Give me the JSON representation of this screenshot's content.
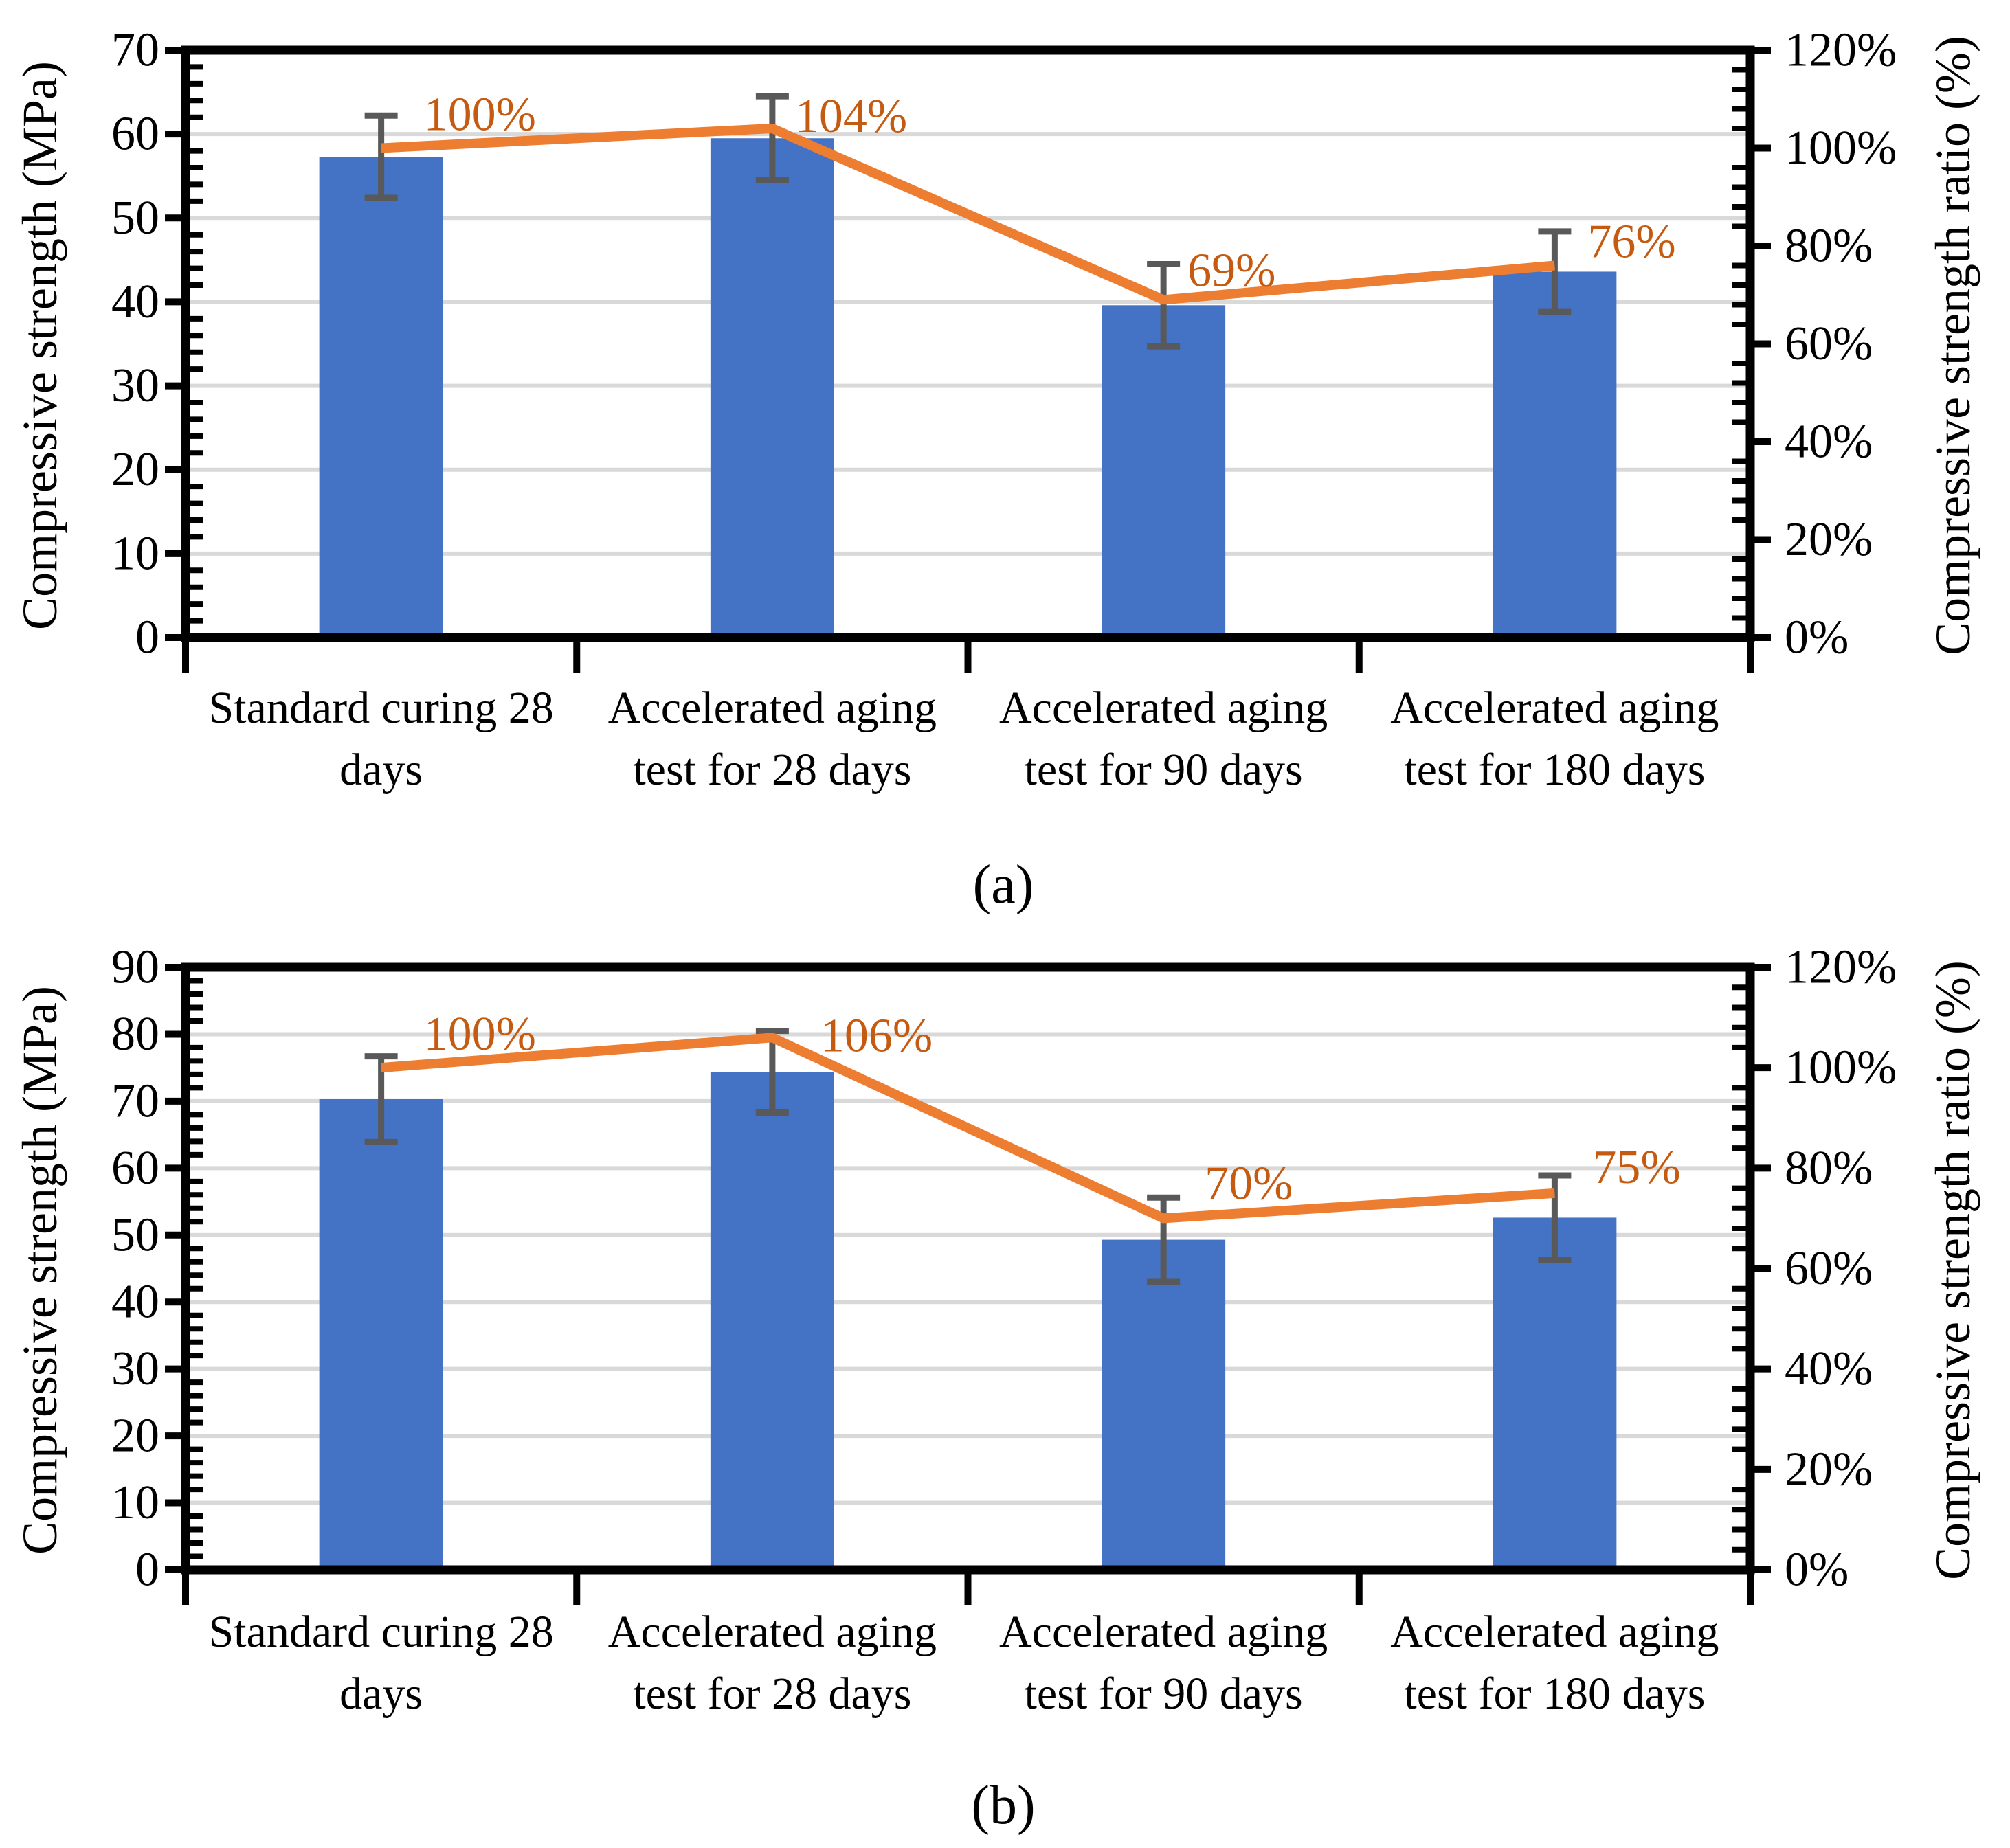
{
  "figure": {
    "background": "#FFFFFF",
    "colors": {
      "bar": "#4472C4",
      "line": "#ED7D31",
      "ratio_label": "#C55A11",
      "error_bar": "#595959",
      "gridline": "#D9D9D9",
      "axis": "#000000"
    }
  },
  "chart_data": [
    {
      "type": "bar",
      "subtitle": "(a)",
      "grid": "horizontal",
      "legend": "none",
      "left_axis": {
        "label": "Compressive strength (MPa)",
        "min": 0,
        "max": 70,
        "ticks": [
          0,
          10,
          20,
          30,
          40,
          50,
          60,
          70
        ],
        "tick_labels": [
          "0",
          "10",
          "20",
          "30",
          "40",
          "50",
          "60",
          "70"
        ],
        "minor_step": 2
      },
      "right_axis": {
        "label": "Compressive strength ratio (%)",
        "min": 0,
        "max": 120,
        "ticks": [
          0,
          20,
          40,
          60,
          80,
          100,
          120
        ],
        "tick_labels": [
          "0%",
          "20%",
          "40%",
          "60%",
          "80%",
          "100%",
          "120%"
        ],
        "minor_step": 4
      },
      "categories": [
        [
          "Standard curing 28",
          "days"
        ],
        [
          "Accelerated aging",
          "test for 28 days"
        ],
        [
          "Accelerated aging",
          "test for 90 days"
        ],
        [
          "Accelerated aging",
          "test for 180 days"
        ]
      ],
      "series": [
        {
          "name": "Compressive strength",
          "type": "bar",
          "unit": "MPa",
          "values": [
            57.3,
            59.5,
            39.6,
            43.6
          ],
          "errors": [
            4.9,
            5.0,
            4.9,
            4.8
          ]
        },
        {
          "name": "Compressive strength ratio",
          "type": "line",
          "unit": "%",
          "values": [
            100,
            104,
            69,
            76
          ],
          "point_labels": [
            "100%",
            "104%",
            "69%",
            "76%"
          ]
        }
      ]
    },
    {
      "type": "bar",
      "subtitle": "(b)",
      "grid": "horizontal",
      "legend": "none",
      "left_axis": {
        "label": "Compressive strength (MPa)",
        "min": 0,
        "max": 90,
        "ticks": [
          0,
          10,
          20,
          30,
          40,
          50,
          60,
          70,
          80,
          90
        ],
        "tick_labels": [
          "0",
          "10",
          "20",
          "30",
          "40",
          "50",
          "60",
          "70",
          "80",
          "90"
        ],
        "minor_step": 2
      },
      "right_axis": {
        "label": "Compressive strength ratio (%)",
        "min": 0,
        "max": 120,
        "ticks": [
          0,
          20,
          40,
          60,
          80,
          100,
          120
        ],
        "tick_labels": [
          "0%",
          "20%",
          "40%",
          "60%",
          "80%",
          "100%",
          "120%"
        ],
        "minor_step": 4
      },
      "categories": [
        [
          "Standard curing 28",
          "days"
        ],
        [
          "Accelerated aging",
          "test for 28 days"
        ],
        [
          "Accelerated aging",
          "test for 90 days"
        ],
        [
          "Accelerated aging",
          "test for 180 days"
        ]
      ],
      "series": [
        {
          "name": "Compressive strength",
          "type": "bar",
          "unit": "MPa",
          "values": [
            70.3,
            74.4,
            49.3,
            52.6
          ],
          "errors": [
            6.4,
            6.1,
            6.3,
            6.3
          ]
        },
        {
          "name": "Compressive strength ratio",
          "type": "line",
          "unit": "%",
          "values": [
            100,
            106,
            70,
            75
          ],
          "point_labels": [
            "100%",
            "106%",
            "70%",
            "75%"
          ]
        }
      ]
    }
  ]
}
